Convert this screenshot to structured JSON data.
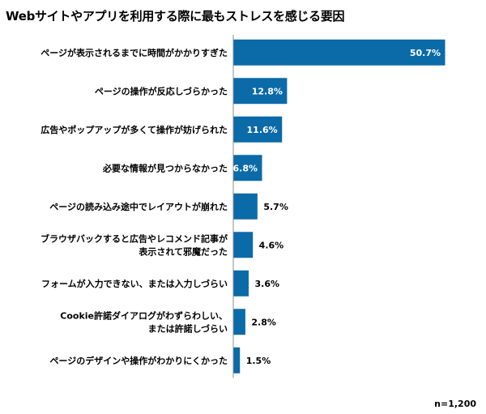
{
  "chart_data": {
    "type": "bar",
    "orientation": "horizontal",
    "title": "Webサイトやアプリを利用する際に最もストレスを感じる要因",
    "categories": [
      "ページが表示されるまでに時間がかかりすぎた",
      "ページの操作が反応しづらかった",
      "広告やポップアップが多くて操作が妨げられた",
      "必要な情報が見つからなかった",
      "ページの読み込み途中でレイアウトが崩れた",
      "ブラウザバックすると広告やレコメンド記事が\n表示されて邪魔だった",
      "フォームが入力できない、または入力しづらい",
      "Cookie許諾ダイアログがわずらわしい、\nまたは許諾しづらい",
      "ページのデザインや操作がわかりにくかった"
    ],
    "values": [
      50.7,
      12.8,
      11.6,
      6.8,
      5.7,
      4.6,
      3.6,
      2.8,
      1.5
    ],
    "value_labels": [
      "50.7%",
      "12.8%",
      "11.6%",
      "6.8%",
      "5.7%",
      "4.6%",
      "3.6%",
      "2.8%",
      "1.5%"
    ],
    "bar_color": "#0b6aa8",
    "grid": false,
    "note": "n=1,200"
  }
}
